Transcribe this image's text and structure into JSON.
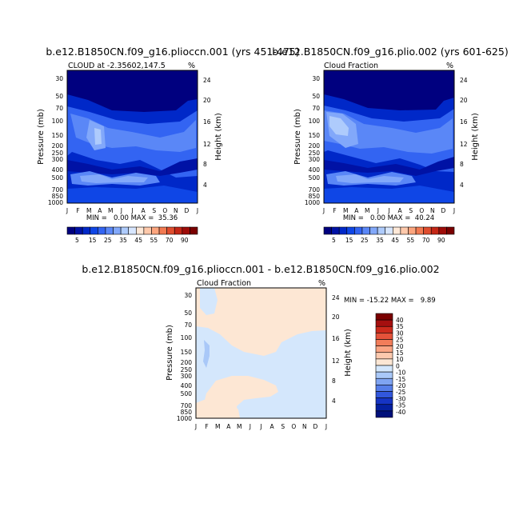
{
  "chart_data": [
    {
      "type": "heatmap",
      "title": "b.e12.B1850CN.f09_g16.plioccn.001 (yrs 451-475)",
      "subtitle_left": "CLOUD at -2.35602,147.5",
      "subtitle_right": "%",
      "ylabel": "Pressure (mb)",
      "ylabel_right": "Height (km)",
      "x_ticks": [
        "J",
        "F",
        "M",
        "A",
        "M",
        "J",
        "J",
        "A",
        "S",
        "O",
        "N",
        "D",
        "J"
      ],
      "y_ticks": [
        "30",
        "50",
        "70",
        "100",
        "150",
        "200",
        "250",
        "300",
        "400",
        "500",
        "700",
        "850",
        "1000"
      ],
      "y_ticks_right": [
        "24",
        "20",
        "16",
        "12",
        "8",
        "4"
      ],
      "stats_text": "MIN =   0.00 MAX =  35.36",
      "colorbar_labels": [
        "5",
        "15",
        "25",
        "35",
        "45",
        "55",
        "70",
        "90"
      ]
    },
    {
      "type": "heatmap",
      "title": "b.e12.B1850CN.f09_g16.plio.002 (yrs 601-625)",
      "subtitle_left": "Cloud Fraction",
      "subtitle_right": "%",
      "ylabel": "Pressure (mb)",
      "ylabel_right": "Height (km)",
      "x_ticks": [
        "J",
        "F",
        "M",
        "A",
        "M",
        "J",
        "J",
        "A",
        "S",
        "O",
        "N",
        "D",
        "J"
      ],
      "y_ticks": [
        "30",
        "50",
        "70",
        "100",
        "150",
        "200",
        "250",
        "300",
        "400",
        "500",
        "700",
        "850",
        "1000"
      ],
      "y_ticks_right": [
        "24",
        "20",
        "16",
        "12",
        "8",
        "4"
      ],
      "stats_text": "MIN =   0.00 MAX =  40.24",
      "colorbar_labels": [
        "5",
        "15",
        "25",
        "35",
        "45",
        "55",
        "70",
        "90"
      ]
    },
    {
      "type": "heatmap",
      "title": "b.e12.B1850CN.f09_g16.plioccn.001 - b.e12.B1850CN.f09_g16.plio.002",
      "subtitle_left": "Cloud Fraction",
      "subtitle_right": "%",
      "ylabel": "Pressure (mb)",
      "ylabel_right": "Height (km)",
      "x_ticks": [
        "J",
        "F",
        "M",
        "A",
        "M",
        "J",
        "J",
        "A",
        "S",
        "O",
        "N",
        "D",
        "J"
      ],
      "y_ticks": [
        "30",
        "50",
        "70",
        "100",
        "150",
        "200",
        "250",
        "300",
        "400",
        "500",
        "700",
        "850",
        "1000"
      ],
      "y_ticks_right": [
        "24",
        "20",
        "16",
        "12",
        "8",
        "4"
      ],
      "stats_text": "MIN = -15.22 MAX =   9.89",
      "colorbar_labels": [
        "40",
        "35",
        "30",
        "25",
        "20",
        "15",
        "10",
        "0",
        "-10",
        "-15",
        "-20",
        "-25",
        "-30",
        "-35",
        "-40"
      ]
    }
  ],
  "colors": {
    "cloud_scale": [
      "#00007f",
      "#0012a5",
      "#0028c8",
      "#0f46e6",
      "#3364f2",
      "#5a87f7",
      "#82a8fa",
      "#aecbfc",
      "#d7e6fe",
      "#fee8d7",
      "#fec9ab",
      "#fca57e",
      "#f27a52",
      "#df4d2e",
      "#c42716",
      "#9e0c08",
      "#7a0000"
    ],
    "diff_scale": [
      "#7a0000",
      "#a50f0f",
      "#cc2a1c",
      "#e4523a",
      "#f27d5a",
      "#faa584",
      "#fcc9ae",
      "#fde7d4",
      "#d4e7fc",
      "#a9c8f8",
      "#7fa4f2",
      "#567ee9",
      "#3257dc",
      "#1634c4",
      "#0520a0",
      "#00107a"
    ],
    "diff_positive": "#fde7d4",
    "diff_negative": "#d4e7fc"
  }
}
